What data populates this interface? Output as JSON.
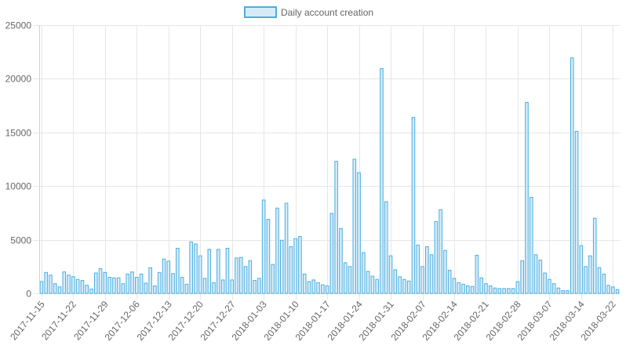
{
  "chart_data": {
    "type": "bar",
    "legend": {
      "label": "Daily account creation",
      "position": "top"
    },
    "colors": {
      "bar_fill": "#d6ebf8",
      "bar_stroke": "#4aaee0",
      "grid": "#e6e6e6",
      "tick_text": "#666666"
    },
    "ylim": [
      0,
      25000
    ],
    "y_ticks": [
      "0",
      "5000",
      "10000",
      "15000",
      "20000",
      "25000"
    ],
    "x_tick_labels": [
      "2017-11-15",
      "2017-11-22",
      "2017-11-29",
      "2017-12-06",
      "2017-12-13",
      "2017-12-20",
      "2017-12-27",
      "2018-01-03",
      "2018-01-10",
      "2018-01-17",
      "2018-01-24",
      "2018-01-31",
      "2018-02-07",
      "2018-02-14",
      "2018-02-21",
      "2018-02-28",
      "2018-03-07",
      "2018-03-14",
      "2018-03-22"
    ],
    "grid": true,
    "start_date": "2017-11-15",
    "values": [
      1100,
      1950,
      1700,
      900,
      600,
      2000,
      1700,
      1550,
      1300,
      1200,
      750,
      400,
      1900,
      2300,
      1950,
      1500,
      1450,
      1450,
      900,
      1800,
      2000,
      1500,
      1800,
      950,
      2400,
      700,
      1950,
      3200,
      3000,
      1850,
      4200,
      1500,
      850,
      4800,
      4600,
      3500,
      1400,
      4100,
      1000,
      4100,
      1250,
      4200,
      1250,
      3300,
      3350,
      2500,
      3050,
      1200,
      1400,
      8700,
      6900,
      2700,
      7950,
      4950,
      8400,
      4350,
      5100,
      5300,
      1800,
      1100,
      1250,
      1000,
      800,
      700,
      7450,
      12300,
      6050,
      2850,
      2500,
      12500,
      11250,
      3800,
      2050,
      1600,
      1300,
      20950,
      8550,
      3500,
      2200,
      1550,
      1300,
      1150,
      16400,
      4500,
      2500,
      4350,
      3600,
      6700,
      7800,
      4000,
      2150,
      1400,
      1000,
      850,
      700,
      650,
      3550,
      1450,
      900,
      700,
      500,
      450,
      450,
      450,
      450,
      1100,
      3050,
      17800,
      8950,
      3600,
      3100,
      1900,
      1300,
      900,
      500,
      250,
      250,
      21950,
      15100,
      4450,
      2500,
      3500,
      7000,
      2400,
      1800,
      750,
      600,
      350
    ]
  }
}
